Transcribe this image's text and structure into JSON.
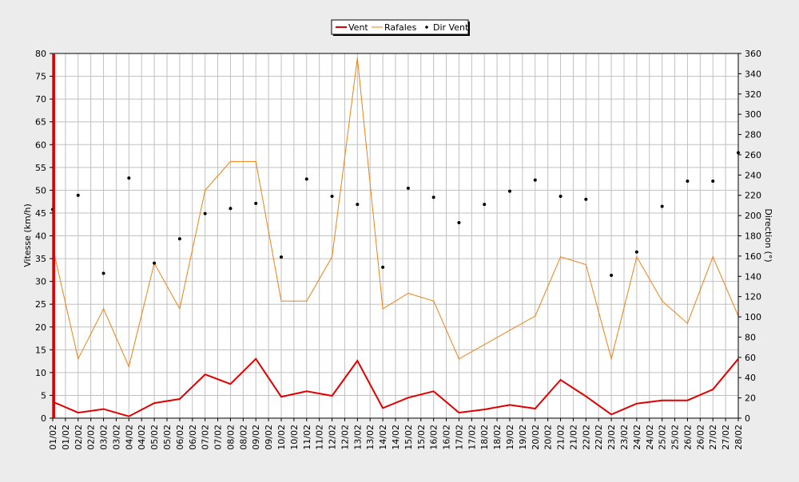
{
  "chart_data": {
    "type": "line",
    "x_labels": [
      "01/02",
      "01/02",
      "02/02",
      "02/02",
      "03/02",
      "03/02",
      "04/02",
      "04/02",
      "05/02",
      "05/02",
      "06/02",
      "06/02",
      "07/02",
      "07/02",
      "08/02",
      "08/02",
      "09/02",
      "09/02",
      "10/02",
      "10/02",
      "11/02",
      "11/02",
      "12/02",
      "12/02",
      "13/02",
      "13/02",
      "14/02",
      "14/02",
      "15/02",
      "15/02",
      "16/02",
      "16/02",
      "17/02",
      "17/02",
      "18/02",
      "18/02",
      "19/02",
      "19/02",
      "20/02",
      "20/02",
      "21/02",
      "21/02",
      "22/02",
      "22/02",
      "23/02",
      "23/02",
      "24/02",
      "24/02",
      "25/02",
      "25/02",
      "26/02",
      "26/02",
      "27/02",
      "27/02",
      "28/02"
    ],
    "series": [
      {
        "name": "Vent",
        "axis": "left",
        "style": "line",
        "color": "#e00000",
        "points": [
          [
            0,
            3.6
          ],
          [
            2,
            1.2
          ],
          [
            4,
            2.0
          ],
          [
            6,
            0.4
          ],
          [
            8,
            3.3
          ],
          [
            10,
            4.2
          ],
          [
            12,
            9.6
          ],
          [
            14,
            7.5
          ],
          [
            16,
            13.0
          ],
          [
            18,
            4.7
          ],
          [
            20,
            5.9
          ],
          [
            22,
            4.9
          ],
          [
            24,
            12.6
          ],
          [
            26,
            2.2
          ],
          [
            28,
            4.5
          ],
          [
            30,
            5.9
          ],
          [
            32,
            1.2
          ],
          [
            34,
            1.9
          ],
          [
            36,
            2.9
          ],
          [
            38,
            2.1
          ],
          [
            40,
            8.4
          ],
          [
            42,
            4.8
          ],
          [
            44,
            0.8
          ],
          [
            46,
            3.2
          ],
          [
            48,
            3.9
          ],
          [
            50,
            3.9
          ],
          [
            52,
            6.3
          ],
          [
            54,
            13.0
          ]
        ]
      },
      {
        "name": "Rafales",
        "axis": "left",
        "style": "line",
        "color": "#f08010",
        "points": [
          [
            0,
            37.5
          ],
          [
            2,
            13.0
          ],
          [
            4,
            24.0
          ],
          [
            6,
            11.3
          ],
          [
            8,
            34.0
          ],
          [
            10,
            24.0
          ],
          [
            12,
            50.0
          ],
          [
            14,
            56.3
          ],
          [
            16,
            56.3
          ],
          [
            18,
            25.7
          ],
          [
            20,
            25.7
          ],
          [
            22,
            35.4
          ],
          [
            24,
            79.0
          ],
          [
            26,
            24.0
          ],
          [
            28,
            27.4
          ],
          [
            30,
            25.7
          ],
          [
            32,
            13.0
          ],
          [
            38,
            22.4
          ],
          [
            40,
            35.4
          ],
          [
            42,
            33.7
          ],
          [
            44,
            13.0
          ],
          [
            46,
            35.4
          ],
          [
            48,
            25.7
          ],
          [
            50,
            20.8
          ],
          [
            52,
            35.4
          ],
          [
            54,
            22.4
          ]
        ]
      },
      {
        "name": "Dir Vent",
        "axis": "right",
        "style": "scatter",
        "color": "#000000",
        "points": [
          [
            0,
            206
          ],
          [
            2,
            220
          ],
          [
            4,
            143
          ],
          [
            6,
            237
          ],
          [
            8,
            153
          ],
          [
            10,
            177
          ],
          [
            12,
            202
          ],
          [
            14,
            207
          ],
          [
            16,
            212
          ],
          [
            18,
            159
          ],
          [
            20,
            236
          ],
          [
            22,
            219
          ],
          [
            24,
            211
          ],
          [
            26,
            149
          ],
          [
            28,
            227
          ],
          [
            30,
            218
          ],
          [
            32,
            193
          ],
          [
            34,
            211
          ],
          [
            36,
            224
          ],
          [
            38,
            235
          ],
          [
            40,
            219
          ],
          [
            42,
            216
          ],
          [
            44,
            141
          ],
          [
            46,
            164
          ],
          [
            48,
            209
          ],
          [
            50,
            234
          ],
          [
            52,
            234
          ],
          [
            54,
            262
          ]
        ]
      }
    ],
    "y_left": {
      "label": "Vitesse (km/h)",
      "min": 0,
      "max": 80,
      "step": 5
    },
    "y_right": {
      "label": "Direction (°)",
      "min": 0,
      "max": 360,
      "step": 20
    },
    "grid": true,
    "legend_position": "top-center"
  }
}
